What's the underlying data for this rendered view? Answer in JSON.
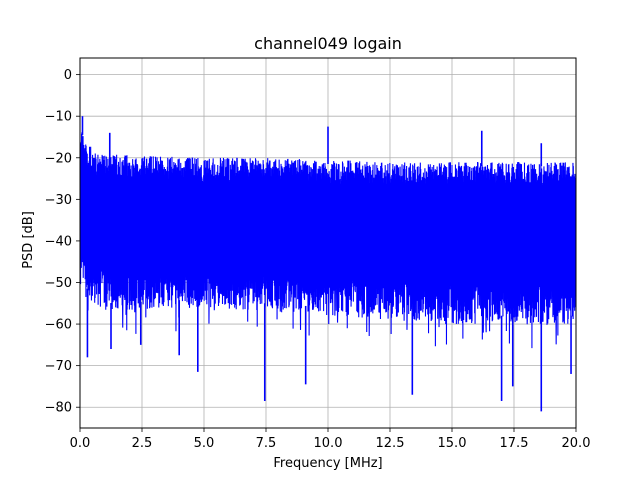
{
  "chart_data": {
    "type": "line",
    "title": "channel049 logain",
    "xlabel": "Frequency [MHz]",
    "ylabel": "PSD [dB]",
    "xlim": [
      0,
      20
    ],
    "ylim": [
      -85,
      4
    ],
    "grid": true,
    "xticks": [
      0,
      2.5,
      5,
      7.5,
      10,
      12.5,
      15,
      17.5,
      20
    ],
    "xtick_labels": [
      "0.0",
      "2.5",
      "5.0",
      "7.5",
      "10.0",
      "12.5",
      "15.0",
      "17.5",
      "20.0"
    ],
    "yticks": [
      0,
      -10,
      -20,
      -30,
      -40,
      -50,
      -60,
      -70,
      -80
    ],
    "ytick_labels": [
      "0",
      "−10",
      "−20",
      "−30",
      "−40",
      "−50",
      "−60",
      "−70",
      "−80"
    ],
    "series": [
      {
        "color": "#0000ff",
        "description": "dense noisy PSD trace",
        "upper_envelope": [
          [
            0,
            -10
          ],
          [
            0.2,
            -13
          ],
          [
            0.5,
            -16
          ],
          [
            1,
            -17
          ],
          [
            2.5,
            -17.5
          ],
          [
            5,
            -18
          ],
          [
            7.5,
            -18
          ],
          [
            10,
            -18.5
          ],
          [
            12.5,
            -19
          ],
          [
            15,
            -19
          ],
          [
            17.5,
            -19
          ],
          [
            20,
            -19
          ]
        ],
        "lower_envelope": [
          [
            0,
            -50
          ],
          [
            1,
            -55
          ],
          [
            5,
            -54
          ],
          [
            10,
            -56
          ],
          [
            15,
            -58
          ],
          [
            20,
            -58
          ]
        ],
        "spikes_up": [
          [
            0.1,
            -10
          ],
          [
            1.2,
            -14
          ],
          [
            10,
            -12.5
          ],
          [
            16.2,
            -13.5
          ],
          [
            18.6,
            -16.5
          ]
        ],
        "spikes_down": [
          [
            0.3,
            -68
          ],
          [
            1.25,
            -66
          ],
          [
            2.45,
            -65
          ],
          [
            4,
            -67.5
          ],
          [
            4.75,
            -71.5
          ],
          [
            7.45,
            -78.5
          ],
          [
            9.1,
            -74.5
          ],
          [
            13.4,
            -77
          ],
          [
            17,
            -78.5
          ],
          [
            17.45,
            -75
          ],
          [
            18.6,
            -81
          ],
          [
            19.8,
            -72
          ]
        ]
      }
    ]
  }
}
